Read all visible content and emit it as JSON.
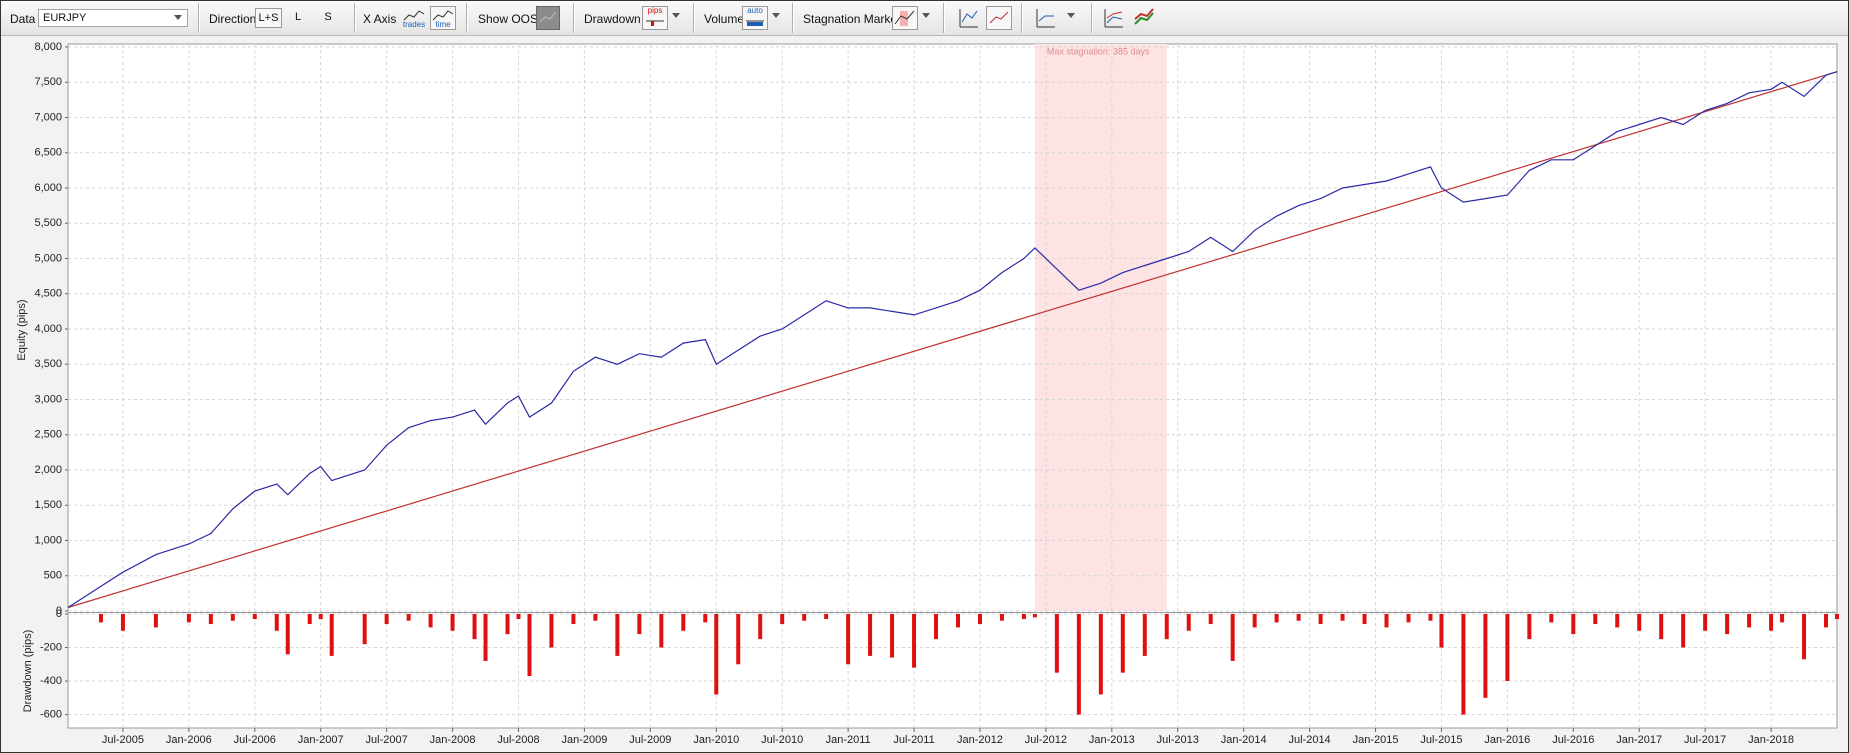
{
  "toolbar": {
    "data_label": "Data",
    "symbol": "EURJPY",
    "direction_label": "Direction",
    "direction_options": [
      "L+S",
      "L",
      "S"
    ],
    "x_axis_label": "X Axis",
    "x_axis_options": [
      "trades",
      "time"
    ],
    "show_oos_label": "Show OOS",
    "drawdown_label": "Drawdown",
    "drawdown_unit": "pips",
    "volume_label": "Volume",
    "volume_mode": "auto",
    "stagnation_label": "Stagnation Marker"
  },
  "chart_data": [
    {
      "type": "line",
      "ylabel": "Equity (pips)",
      "grid": true,
      "ylim": [
        0,
        8000
      ],
      "yticks": [
        0,
        500,
        {
          "value": 1000,
          "label": "1,000"
        },
        {
          "value": 1500,
          "label": "1,500"
        },
        {
          "value": 2000,
          "label": "2,000"
        },
        {
          "value": 2500,
          "label": "2,500"
        },
        {
          "value": 3000,
          "label": "3,000"
        },
        {
          "value": 3500,
          "label": "3,500"
        },
        {
          "value": 4000,
          "label": "4,000"
        },
        {
          "value": 4500,
          "label": "4,500"
        },
        {
          "value": 5000,
          "label": "5,000"
        },
        {
          "value": 5500,
          "label": "5,500"
        },
        {
          "value": 6000,
          "label": "6,000"
        },
        {
          "value": 6500,
          "label": "6,500"
        },
        {
          "value": 7000,
          "label": "7,000"
        },
        {
          "value": 7500,
          "label": "7,500"
        },
        {
          "value": 8000,
          "label": "8,000"
        }
      ],
      "x": [
        "2005-02",
        "2005-05",
        "2005-07",
        "2005-10",
        "2006-01",
        "2006-03",
        "2006-05",
        "2006-07",
        "2006-09",
        "2006-10",
        "2006-12",
        "2007-01",
        "2007-02",
        "2007-05",
        "2007-07",
        "2007-09",
        "2007-11",
        "2008-01",
        "2008-03",
        "2008-04",
        "2008-06",
        "2008-07",
        "2008-08",
        "2008-10",
        "2008-12",
        "2009-02",
        "2009-04",
        "2009-06",
        "2009-08",
        "2009-10",
        "2009-12",
        "2010-01",
        "2010-03",
        "2010-05",
        "2010-07",
        "2010-09",
        "2010-11",
        "2011-01",
        "2011-03",
        "2011-05",
        "2011-07",
        "2011-09",
        "2011-11",
        "2012-01",
        "2012-03",
        "2012-05",
        "2012-06",
        "2012-08",
        "2012-10",
        "2012-12",
        "2013-02",
        "2013-04",
        "2013-06",
        "2013-08",
        "2013-10",
        "2013-12",
        "2014-02",
        "2014-04",
        "2014-06",
        "2014-08",
        "2014-10",
        "2014-12",
        "2015-02",
        "2015-04",
        "2015-06",
        "2015-07",
        "2015-09",
        "2015-11",
        "2016-01",
        "2016-03",
        "2016-05",
        "2016-07",
        "2016-09",
        "2016-11",
        "2017-01",
        "2017-03",
        "2017-05",
        "2017-07",
        "2017-09",
        "2017-11",
        "2018-01",
        "2018-02",
        "2018-04",
        "2018-06",
        "2018-07"
      ],
      "series": [
        {
          "color": "#2a2aa6",
          "values": [
            50,
            350,
            550,
            800,
            950,
            1100,
            1450,
            1700,
            1800,
            1650,
            1950,
            2050,
            1850,
            2000,
            2350,
            2600,
            2700,
            2750,
            2850,
            2650,
            2950,
            3050,
            2750,
            2950,
            3400,
            3600,
            3500,
            3650,
            3600,
            3800,
            3850,
            3500,
            3700,
            3900,
            4000,
            4200,
            4400,
            4300,
            4300,
            4250,
            4200,
            4300,
            4400,
            4550,
            4800,
            5000,
            5150,
            4850,
            4550,
            4650,
            4800,
            4900,
            5000,
            5100,
            5300,
            5100,
            5400,
            5600,
            5750,
            5850,
            6000,
            6050,
            6100,
            6200,
            6300,
            6000,
            5800,
            5850,
            5900,
            6250,
            6400,
            6400,
            6600,
            6800,
            6900,
            7000,
            6900,
            7100,
            7200,
            7350,
            7400,
            7500,
            7300,
            7600,
            7650
          ]
        }
      ],
      "trendline": {
        "color": "#c03030",
        "x": [
          "2005-02",
          "2018-07"
        ],
        "values": [
          50,
          7650
        ]
      },
      "stagnation": {
        "label": "Max stagnation: 385 days",
        "start": "2012-06",
        "end": "2013-06",
        "color": "#fde3e3"
      }
    },
    {
      "type": "bar",
      "ylabel": "Drawdown (pips)",
      "grid": true,
      "color": "#e01010",
      "ylim": [
        -680,
        0
      ],
      "yticks": [
        0,
        -200,
        -400,
        -600
      ],
      "xlim": [
        "2005-02",
        "2018-07"
      ],
      "xticks": [
        {
          "value": "2005-07",
          "label": "Jul-2005"
        },
        {
          "value": "2006-01",
          "label": "Jan-2006"
        },
        {
          "value": "2006-07",
          "label": "Jul-2006"
        },
        {
          "value": "2007-01",
          "label": "Jan-2007"
        },
        {
          "value": "2007-07",
          "label": "Jul-2007"
        },
        {
          "value": "2008-01",
          "label": "Jan-2008"
        },
        {
          "value": "2008-07",
          "label": "Jul-2008"
        },
        {
          "value": "2009-01",
          "label": "Jan-2009"
        },
        {
          "value": "2009-07",
          "label": "Jul-2009"
        },
        {
          "value": "2010-01",
          "label": "Jan-2010"
        },
        {
          "value": "2010-07",
          "label": "Jul-2010"
        },
        {
          "value": "2011-01",
          "label": "Jan-2011"
        },
        {
          "value": "2011-07",
          "label": "Jul-2011"
        },
        {
          "value": "2012-01",
          "label": "Jan-2012"
        },
        {
          "value": "2012-07",
          "label": "Jul-2012"
        },
        {
          "value": "2013-01",
          "label": "Jan-2013"
        },
        {
          "value": "2013-07",
          "label": "Jul-2013"
        },
        {
          "value": "2014-01",
          "label": "Jan-2014"
        },
        {
          "value": "2014-07",
          "label": "Jul-2014"
        },
        {
          "value": "2015-01",
          "label": "Jan-2015"
        },
        {
          "value": "2015-07",
          "label": "Jul-2015"
        },
        {
          "value": "2016-01",
          "label": "Jan-2016"
        },
        {
          "value": "2016-07",
          "label": "Jul-2016"
        },
        {
          "value": "2017-01",
          "label": "Jan-2017"
        },
        {
          "value": "2017-07",
          "label": "Jul-2017"
        },
        {
          "value": "2018-01",
          "label": "Jan-2018"
        }
      ],
      "x": [
        "2005-02",
        "2005-05",
        "2005-07",
        "2005-10",
        "2006-01",
        "2006-03",
        "2006-05",
        "2006-07",
        "2006-09",
        "2006-10",
        "2006-12",
        "2007-01",
        "2007-02",
        "2007-05",
        "2007-07",
        "2007-09",
        "2007-11",
        "2008-01",
        "2008-03",
        "2008-04",
        "2008-06",
        "2008-07",
        "2008-08",
        "2008-10",
        "2008-12",
        "2009-02",
        "2009-04",
        "2009-06",
        "2009-08",
        "2009-10",
        "2009-12",
        "2010-01",
        "2010-03",
        "2010-05",
        "2010-07",
        "2010-09",
        "2010-11",
        "2011-01",
        "2011-03",
        "2011-05",
        "2011-07",
        "2011-09",
        "2011-11",
        "2012-01",
        "2012-03",
        "2012-05",
        "2012-06",
        "2012-08",
        "2012-10",
        "2012-12",
        "2013-02",
        "2013-04",
        "2013-06",
        "2013-08",
        "2013-10",
        "2013-12",
        "2014-02",
        "2014-04",
        "2014-06",
        "2014-08",
        "2014-10",
        "2014-12",
        "2015-02",
        "2015-04",
        "2015-06",
        "2015-07",
        "2015-09",
        "2015-11",
        "2016-01",
        "2016-03",
        "2016-05",
        "2016-07",
        "2016-09",
        "2016-11",
        "2017-01",
        "2017-03",
        "2017-05",
        "2017-07",
        "2017-09",
        "2017-11",
        "2018-01",
        "2018-02",
        "2018-04",
        "2018-06",
        "2018-07"
      ],
      "values": [
        0,
        -50,
        -100,
        -80,
        -50,
        -60,
        -40,
        -30,
        -100,
        -240,
        -60,
        -30,
        -250,
        -180,
        -60,
        -40,
        -80,
        -100,
        -150,
        -280,
        -120,
        -30,
        -370,
        -200,
        -60,
        -40,
        -250,
        -120,
        -200,
        -100,
        -50,
        -480,
        -300,
        -150,
        -60,
        -40,
        -30,
        -300,
        -250,
        -260,
        -320,
        -150,
        -80,
        -60,
        -40,
        -30,
        -20,
        -350,
        -600,
        -480,
        -350,
        -250,
        -150,
        -100,
        -60,
        -280,
        -80,
        -50,
        -40,
        -60,
        -40,
        -60,
        -80,
        -50,
        -40,
        -200,
        -600,
        -500,
        -400,
        -150,
        -50,
        -120,
        -60,
        -80,
        -100,
        -150,
        -200,
        -100,
        -120,
        -80,
        -100,
        -50,
        -270,
        -80,
        -30
      ]
    }
  ]
}
